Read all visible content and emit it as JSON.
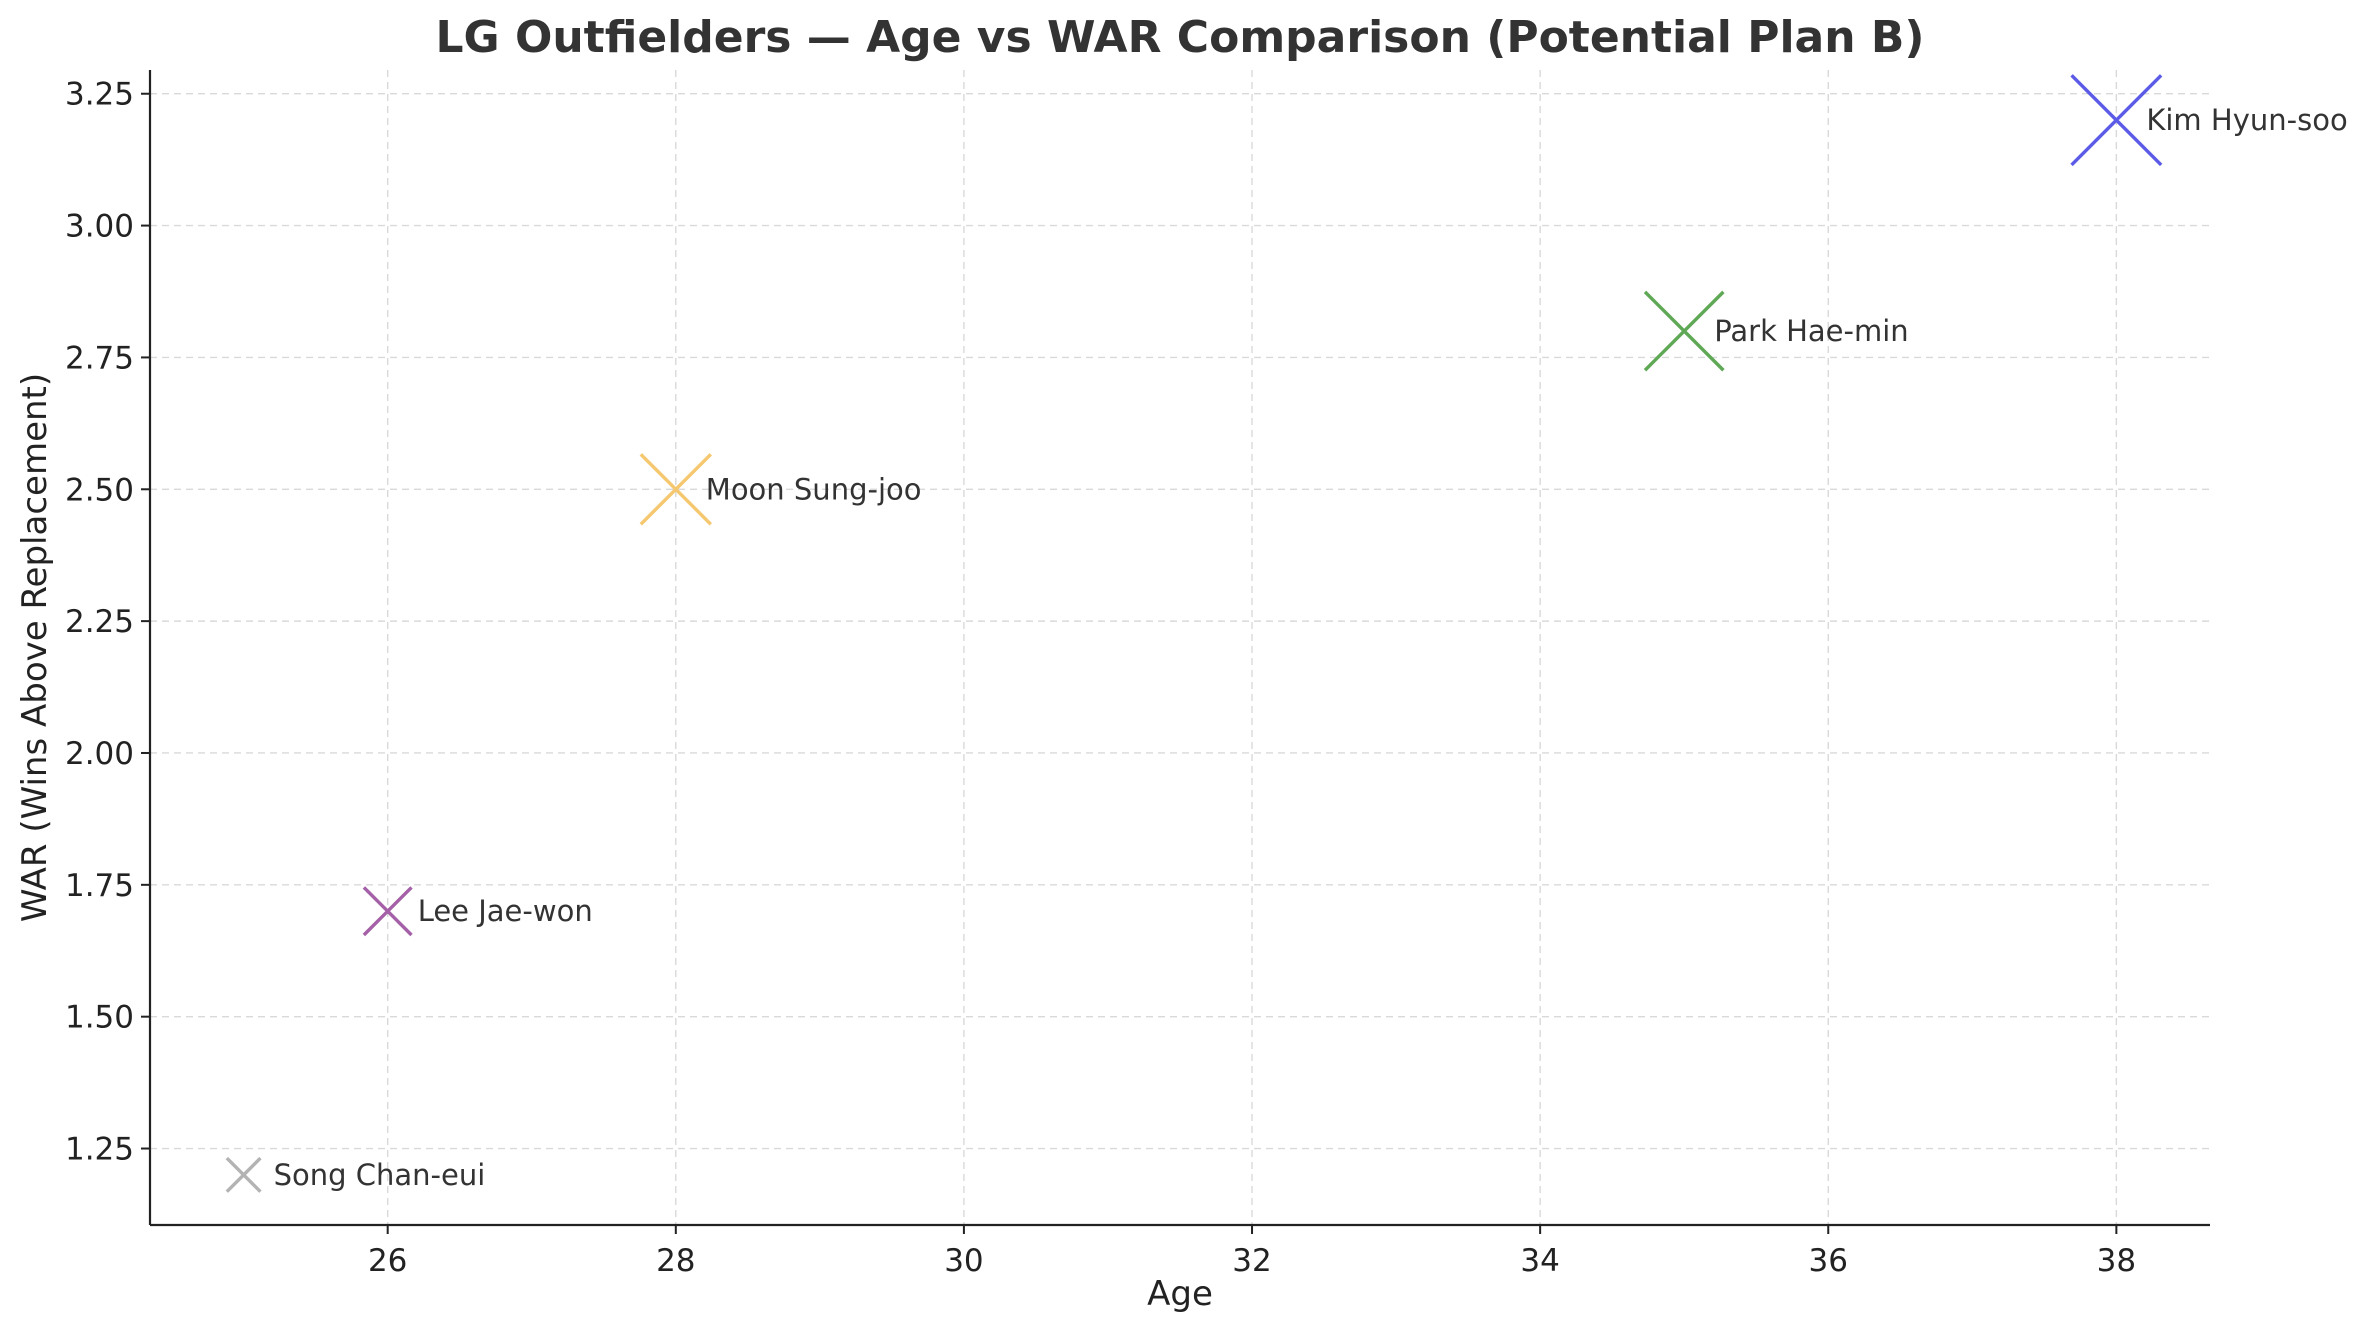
{
  "chart_data": {
    "type": "scatter",
    "title": "LG Outfielders — Age vs WAR Comparison (Potential Plan B)",
    "xlabel": "Age",
    "ylabel": "WAR (Wins Above Replacement)",
    "xlim": [
      24.35,
      38.65
    ],
    "ylim": [
      1.105,
      3.295
    ],
    "x_ticks": [
      26,
      28,
      30,
      32,
      34,
      36,
      38
    ],
    "y_ticks": [
      1.25,
      1.5,
      1.75,
      2.0,
      2.25,
      2.5,
      2.75,
      3.0,
      3.25
    ],
    "grid": true,
    "marker": "x",
    "points": [
      {
        "label": "Kim Hyun-soo",
        "x": 38,
        "y": 3.2,
        "size": 3.2,
        "color": "#5b5be8"
      },
      {
        "label": "Park Hae-min",
        "x": 35,
        "y": 2.8,
        "size": 2.8,
        "color": "#5fa855"
      },
      {
        "label": "Moon Sung-joo",
        "x": 28,
        "y": 2.5,
        "size": 2.5,
        "color": "#f5c870"
      },
      {
        "label": "Lee Jae-won",
        "x": 26,
        "y": 1.7,
        "size": 1.7,
        "color": "#a561a8"
      },
      {
        "label": "Song Chan-eui",
        "x": 25,
        "y": 1.2,
        "size": 1.2,
        "color": "#b3b3b3"
      }
    ]
  }
}
